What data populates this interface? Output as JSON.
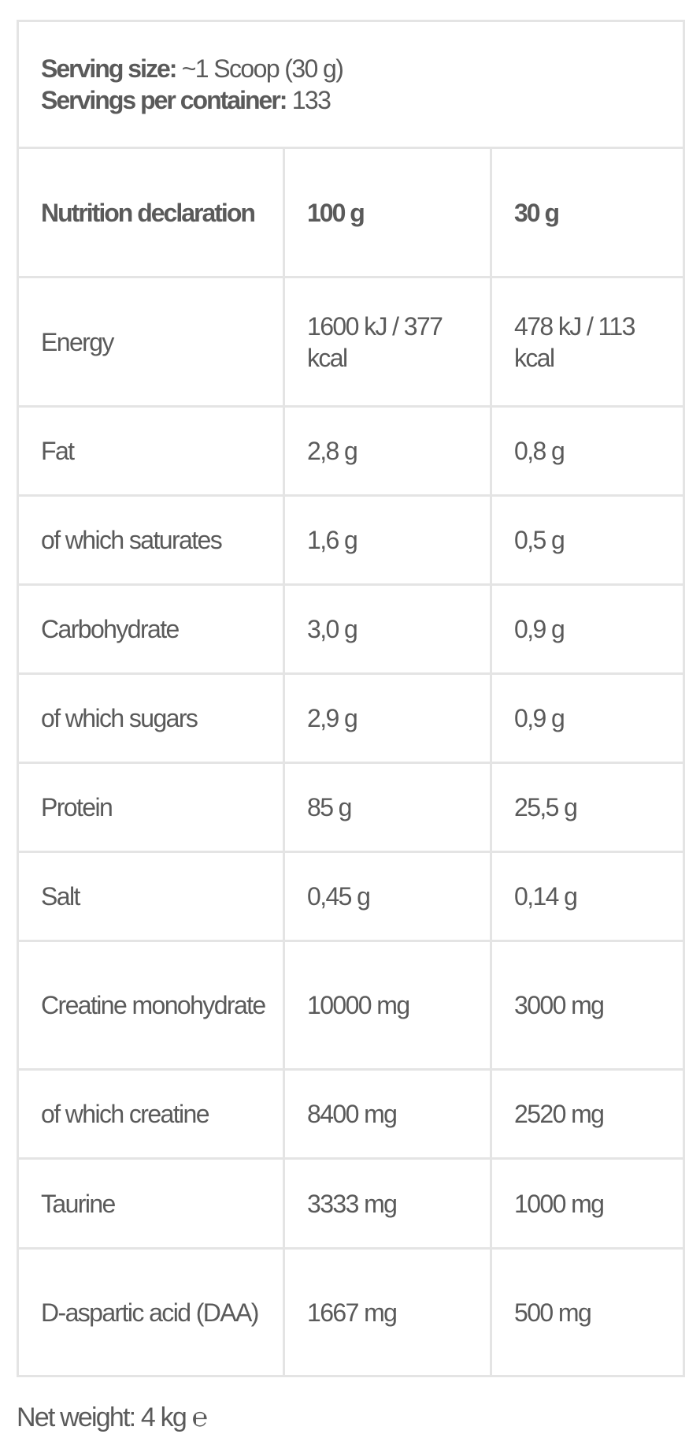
{
  "serving": {
    "size_label": "Serving size:",
    "size_value": "~1 Scoop (30 g)",
    "per_container_label": "Servings per container:",
    "per_container_value": "133"
  },
  "table": {
    "headers": [
      "Nutrition declaration",
      "100 g",
      "30 g"
    ],
    "rows": [
      [
        "Energy",
        "1600 kJ / 377 kcal",
        "478 kJ / 113 kcal"
      ],
      [
        "Fat",
        "2,8 g",
        "0,8 g"
      ],
      [
        "of which saturates",
        "1,6 g",
        "0,5 g"
      ],
      [
        "Carbohydrate",
        "3,0 g",
        "0,9 g"
      ],
      [
        "of which sugars",
        "2,9 g",
        "0,9 g"
      ],
      [
        "Protein",
        "85 g",
        "25,5 g"
      ],
      [
        "Salt",
        "0,45 g",
        "0,14 g"
      ],
      [
        "Creatine monohydrate",
        "10000 mg",
        "3000 mg"
      ],
      [
        "of which creatine",
        "8400 mg",
        "2520 mg"
      ],
      [
        "Taurine",
        "3333 mg",
        "1000 mg"
      ],
      [
        "D-aspartic acid (DAA)",
        "1667 mg",
        "500 mg"
      ]
    ]
  },
  "net_weight": {
    "label": "Net weight: 4 kg",
    "estimated_sign": "℮"
  }
}
